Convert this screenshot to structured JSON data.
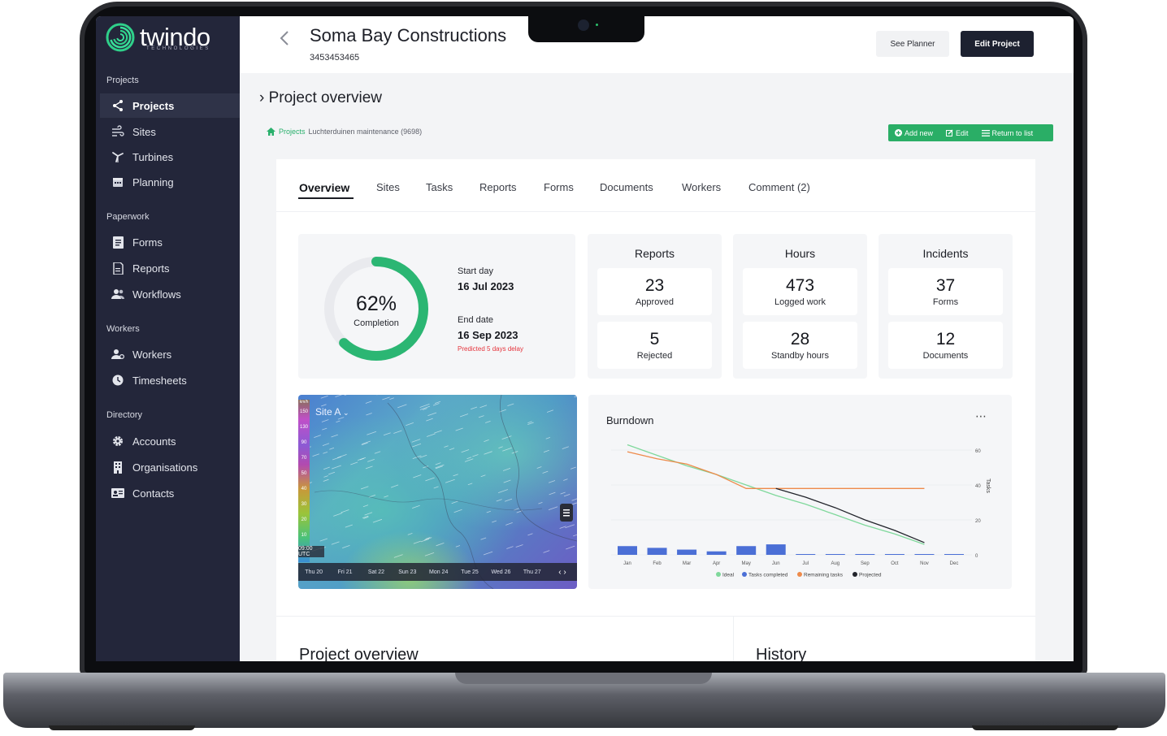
{
  "brand": {
    "name": "twindo",
    "tagline": "TECHNOLOGIES"
  },
  "sidebar": {
    "sections": [
      {
        "label": "Projects",
        "items": [
          {
            "label": "Projects",
            "icon": "share-icon",
            "active": true
          },
          {
            "label": "Sites",
            "icon": "wind-icon"
          },
          {
            "label": "Turbines",
            "icon": "turbine-icon"
          },
          {
            "label": "Planning",
            "icon": "calendar-icon"
          }
        ]
      },
      {
        "label": "Paperwork",
        "items": [
          {
            "label": "Forms",
            "icon": "form-icon"
          },
          {
            "label": "Reports",
            "icon": "report-icon"
          },
          {
            "label": "Workflows",
            "icon": "users-icon"
          }
        ]
      },
      {
        "label": "Workers",
        "items": [
          {
            "label": "Workers",
            "icon": "worker-icon"
          },
          {
            "label": "Timesheets",
            "icon": "clock-icon"
          }
        ]
      },
      {
        "label": "Directory",
        "items": [
          {
            "label": "Accounts",
            "icon": "gear-icon"
          },
          {
            "label": "Organisations",
            "icon": "building-icon"
          },
          {
            "label": "Contacts",
            "icon": "contact-card-icon"
          }
        ]
      }
    ]
  },
  "header": {
    "title": "Soma Bay Constructions",
    "project_id": "3453453465",
    "see_planner": "See Planner",
    "edit_project": "Edit Project"
  },
  "overview": {
    "heading": "Project overview",
    "breadcrumb": {
      "root": "Projects",
      "current": "Luchterduinen maintenance (9698)"
    },
    "actions": {
      "add_new": "Add new",
      "edit": "Edit",
      "return": "Return to list"
    }
  },
  "tabs": [
    "Overview",
    "Sites",
    "Tasks",
    "Reports",
    "Forms",
    "Documents",
    "Workers",
    "Comment (2)"
  ],
  "completion": {
    "percent_label": "62%",
    "percent_value": 62,
    "label": "Completion",
    "start_label": "Start day",
    "start_date": "16 Jul 2023",
    "end_label": "End date",
    "end_date": "16 Sep 2023",
    "warning": "Predicted 5 days delay",
    "ring_color": "#2bb673"
  },
  "stats": [
    {
      "title": "Reports",
      "top_value": "23",
      "top_label": "Approved",
      "bottom_value": "5",
      "bottom_label": "Rejected"
    },
    {
      "title": "Hours",
      "top_value": "473",
      "top_label": "Logged work",
      "bottom_value": "28",
      "bottom_label": "Standby hours"
    },
    {
      "title": "Incidents",
      "top_value": "37",
      "top_label": "Forms",
      "bottom_value": "12",
      "bottom_label": "Documents"
    }
  ],
  "map": {
    "site_label": "Site A",
    "time_label": "09:00 UTC",
    "scale_unit": "km/h",
    "scale_ticks": [
      "150",
      "130",
      "90",
      "70",
      "50",
      "40",
      "30",
      "20",
      "10"
    ],
    "days": [
      "Thu 20",
      "Fri 21",
      "Sat 22",
      "Sun 23",
      "Mon 24",
      "Tue 25",
      "Wed 26",
      "Thu 27"
    ]
  },
  "chart_data": {
    "type": "line",
    "title": "Burndown",
    "x": [
      "Jan",
      "Feb",
      "Mar",
      "Apr",
      "May",
      "Jun",
      "Jul",
      "Aug",
      "Sep",
      "Oct",
      "Nov",
      "Dec"
    ],
    "ylabel": "Tasks",
    "ylim": [
      0,
      60
    ],
    "yticks": [
      "60",
      "40",
      "20",
      "0"
    ],
    "series": [
      {
        "name": "Ideal",
        "type": "line",
        "color": "#7fd89b",
        "values": [
          63,
          57,
          51,
          46,
          40,
          34,
          29,
          23,
          17,
          12,
          6,
          null
        ]
      },
      {
        "name": "Tasks completed",
        "type": "bar",
        "color": "#4b6fd6",
        "values": [
          5,
          4,
          3,
          2,
          5,
          6,
          0,
          0,
          0,
          0,
          0,
          0
        ]
      },
      {
        "name": "Remaining tasks",
        "type": "line",
        "color": "#ee8a4a",
        "values": [
          59,
          55,
          52,
          46,
          38,
          38,
          38,
          38,
          38,
          38,
          38,
          null
        ]
      },
      {
        "name": "Projected",
        "type": "line",
        "color": "#22242b",
        "values": [
          null,
          null,
          null,
          null,
          null,
          38,
          33,
          27,
          20,
          14,
          7,
          null
        ]
      }
    ],
    "legend_position": "bottom",
    "more_icon": "more-icon"
  },
  "bottom": {
    "left_title": "Project overview",
    "right_title": "History"
  }
}
